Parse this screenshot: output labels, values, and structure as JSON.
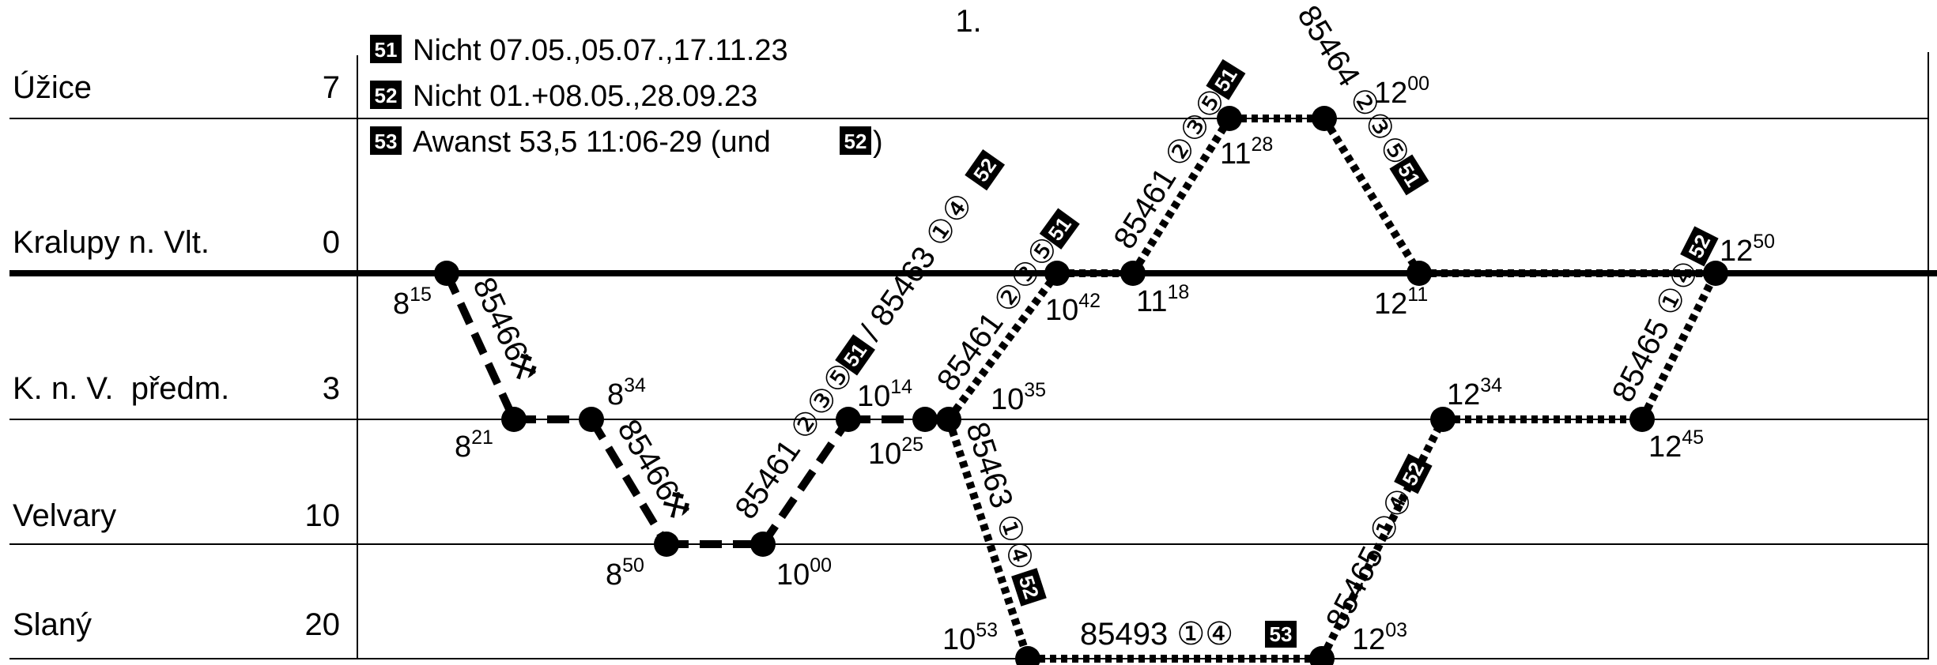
{
  "page_title": "1.",
  "colors": {
    "ink": "#000000",
    "paper": "#ffffff"
  },
  "stations": [
    {
      "key": "uzice",
      "name": "Úžice",
      "km": "7"
    },
    {
      "key": "kralupy",
      "name": "Kralupy n. Vlt.",
      "km": "0"
    },
    {
      "key": "knv",
      "name": "K. n. V.  předm.",
      "km": "3"
    },
    {
      "key": "velvary",
      "name": "Velvary",
      "km": "10"
    },
    {
      "key": "slany",
      "name": "Slaný",
      "km": "20"
    }
  ],
  "notes": [
    {
      "badge": "51",
      "text": "Nicht 07.05.,05.07.,17.11.23"
    },
    {
      "badge": "52",
      "text": "Nicht 01.+08.05.,28.09.23"
    },
    {
      "badge": "53",
      "text": "Awanst 53,5 11:06-29 (und ",
      "badge_after": "52",
      "text_after": ")"
    }
  ],
  "times": [
    {
      "h": "8",
      "m": "15"
    },
    {
      "h": "8",
      "m": "21"
    },
    {
      "h": "8",
      "m": "34"
    },
    {
      "h": "8",
      "m": "50"
    },
    {
      "h": "10",
      "m": "00"
    },
    {
      "h": "10",
      "m": "14"
    },
    {
      "h": "10",
      "m": "25"
    },
    {
      "h": "10",
      "m": "35"
    },
    {
      "h": "10",
      "m": "42"
    },
    {
      "h": "11",
      "m": "18"
    },
    {
      "h": "11",
      "m": "28"
    },
    {
      "h": "12",
      "m": "00"
    },
    {
      "h": "12",
      "m": "11"
    },
    {
      "h": "10",
      "m": "53"
    },
    {
      "h": "12",
      "m": "03"
    },
    {
      "h": "12",
      "m": "34"
    },
    {
      "h": "12",
      "m": "45"
    },
    {
      "h": "12",
      "m": "50"
    }
  ],
  "trains": [
    {
      "label": "85466",
      "pick": "⚒",
      "badges": []
    },
    {
      "label": "85466",
      "pick": "⚒",
      "badges": []
    },
    {
      "label": "85461 ②③⑤",
      "badges": [
        "51"
      ],
      "extra": "/ 85463 ①④",
      "extra_badges": [
        "52"
      ]
    },
    {
      "label": "85461 ②③⑤",
      "badges": [
        "51"
      ]
    },
    {
      "label": "85461 ②③⑤",
      "badges": [
        "51"
      ]
    },
    {
      "label": "85464 ②③⑤",
      "badges": [
        "51"
      ]
    },
    {
      "label": "85463 ①④",
      "badges": [
        "52"
      ]
    },
    {
      "label": "85493 ①④",
      "badges": [
        "53"
      ]
    },
    {
      "label": "85465 ①④",
      "badges": [
        "52"
      ]
    },
    {
      "label": "85465 ①④",
      "badges": [
        "52"
      ]
    }
  ]
}
